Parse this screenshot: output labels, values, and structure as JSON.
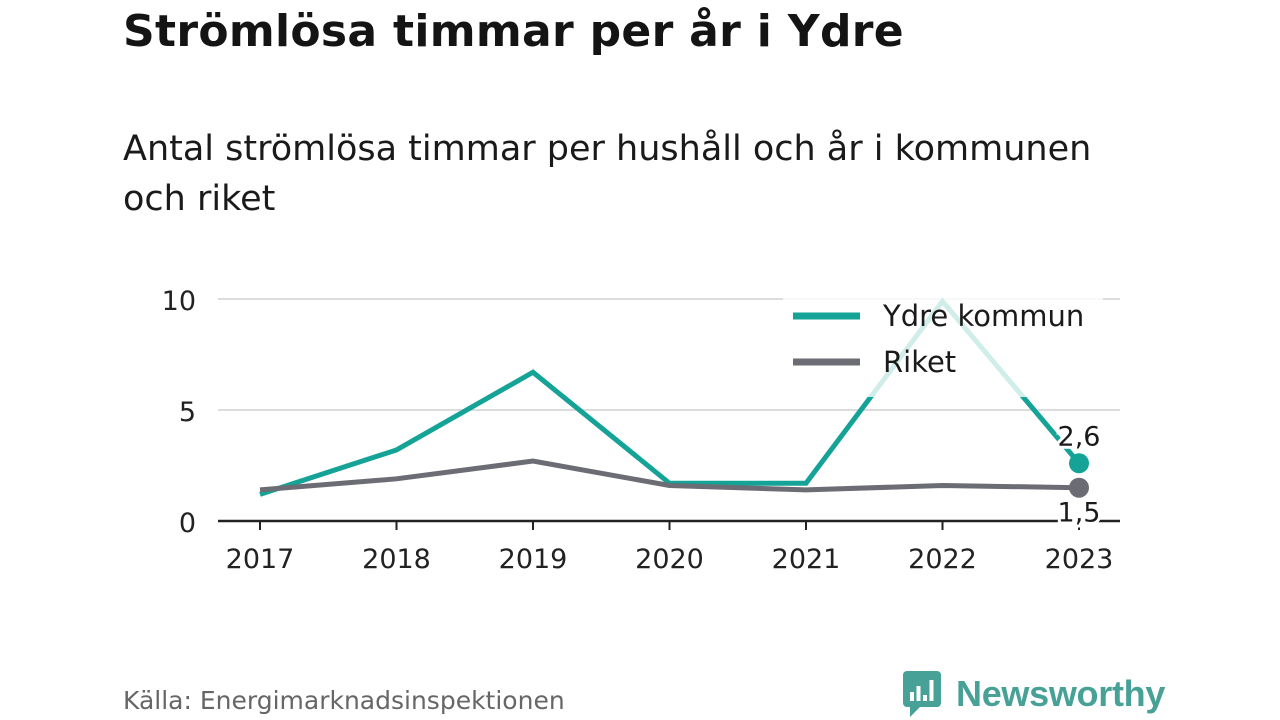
{
  "title": "Strömlösa timmar per år i Ydre",
  "subtitle": "Antal strömlösa timmar per hushåll och år i kommunen och riket",
  "source": "Källa: Energimarknadsinspektionen",
  "brand": {
    "name": "Newsworthy",
    "icon": "bar-chart-speech-bubble-icon",
    "color": "#47a196"
  },
  "chart_data": {
    "type": "line",
    "title": "Strömlösa timmar per år i Ydre",
    "subtitle": "Antal strömlösa timmar per hushåll och år i kommunen och riket",
    "x": [
      "2017",
      "2018",
      "2019",
      "2020",
      "2021",
      "2022",
      "2023"
    ],
    "y_ticks": [
      0,
      5,
      10
    ],
    "ylim": [
      0,
      10
    ],
    "grid": true,
    "legend_position": "top-right",
    "series": [
      {
        "name": "Ydre kommun",
        "color": "#14a396",
        "values": [
          1.2,
          3.2,
          6.7,
          1.7,
          1.7,
          9.9,
          2.6
        ],
        "end_label": "2,6"
      },
      {
        "name": "Riket",
        "color": "#6c6c74",
        "values": [
          1.4,
          1.9,
          2.7,
          1.6,
          1.4,
          1.6,
          1.5
        ],
        "end_label": "1,5"
      }
    ]
  }
}
